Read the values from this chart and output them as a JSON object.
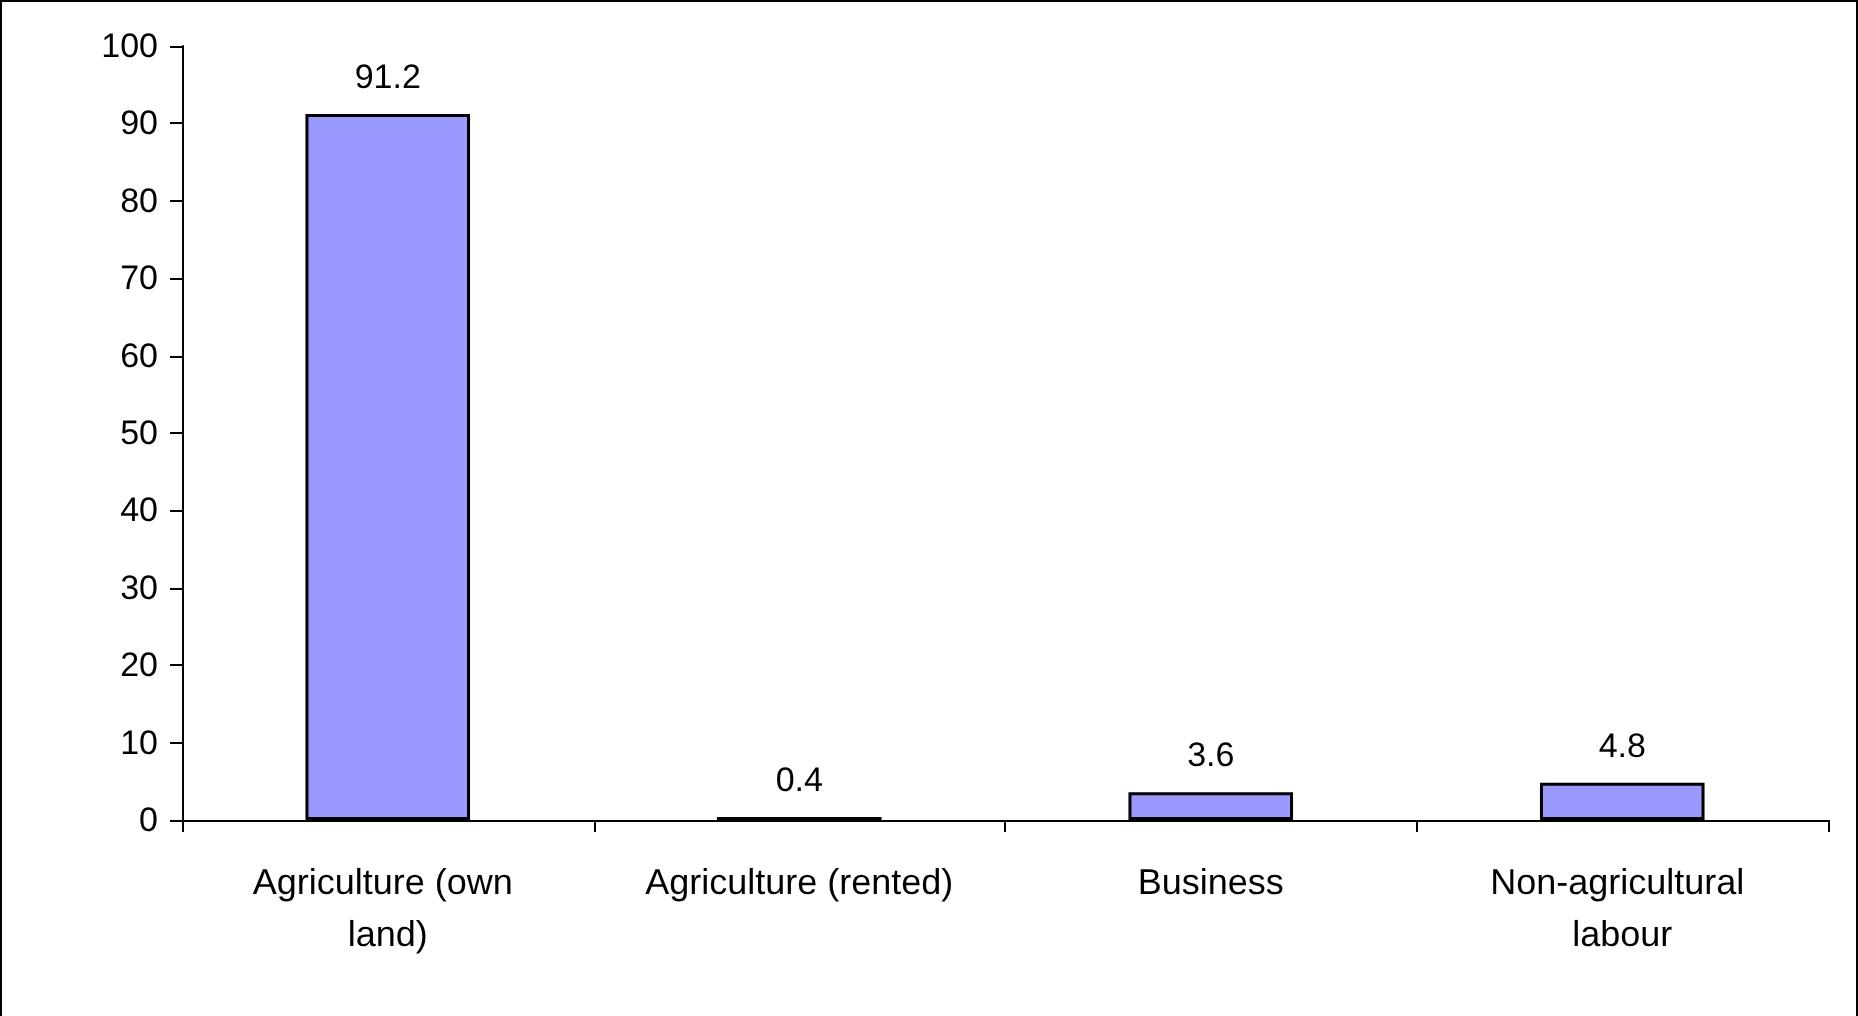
{
  "chart_data": {
    "type": "bar",
    "categories": [
      "Agriculture (own land)",
      "Agriculture (rented)",
      "Business",
      "Non-agricultural labour"
    ],
    "values": [
      91.2,
      0.4,
      3.6,
      4.8
    ],
    "color": "#9999ff",
    "ylim": [
      0,
      100
    ],
    "yticks": [
      0,
      10,
      20,
      30,
      40,
      50,
      60,
      70,
      80,
      90,
      100
    ],
    "grid": false,
    "data_labels": true
  }
}
